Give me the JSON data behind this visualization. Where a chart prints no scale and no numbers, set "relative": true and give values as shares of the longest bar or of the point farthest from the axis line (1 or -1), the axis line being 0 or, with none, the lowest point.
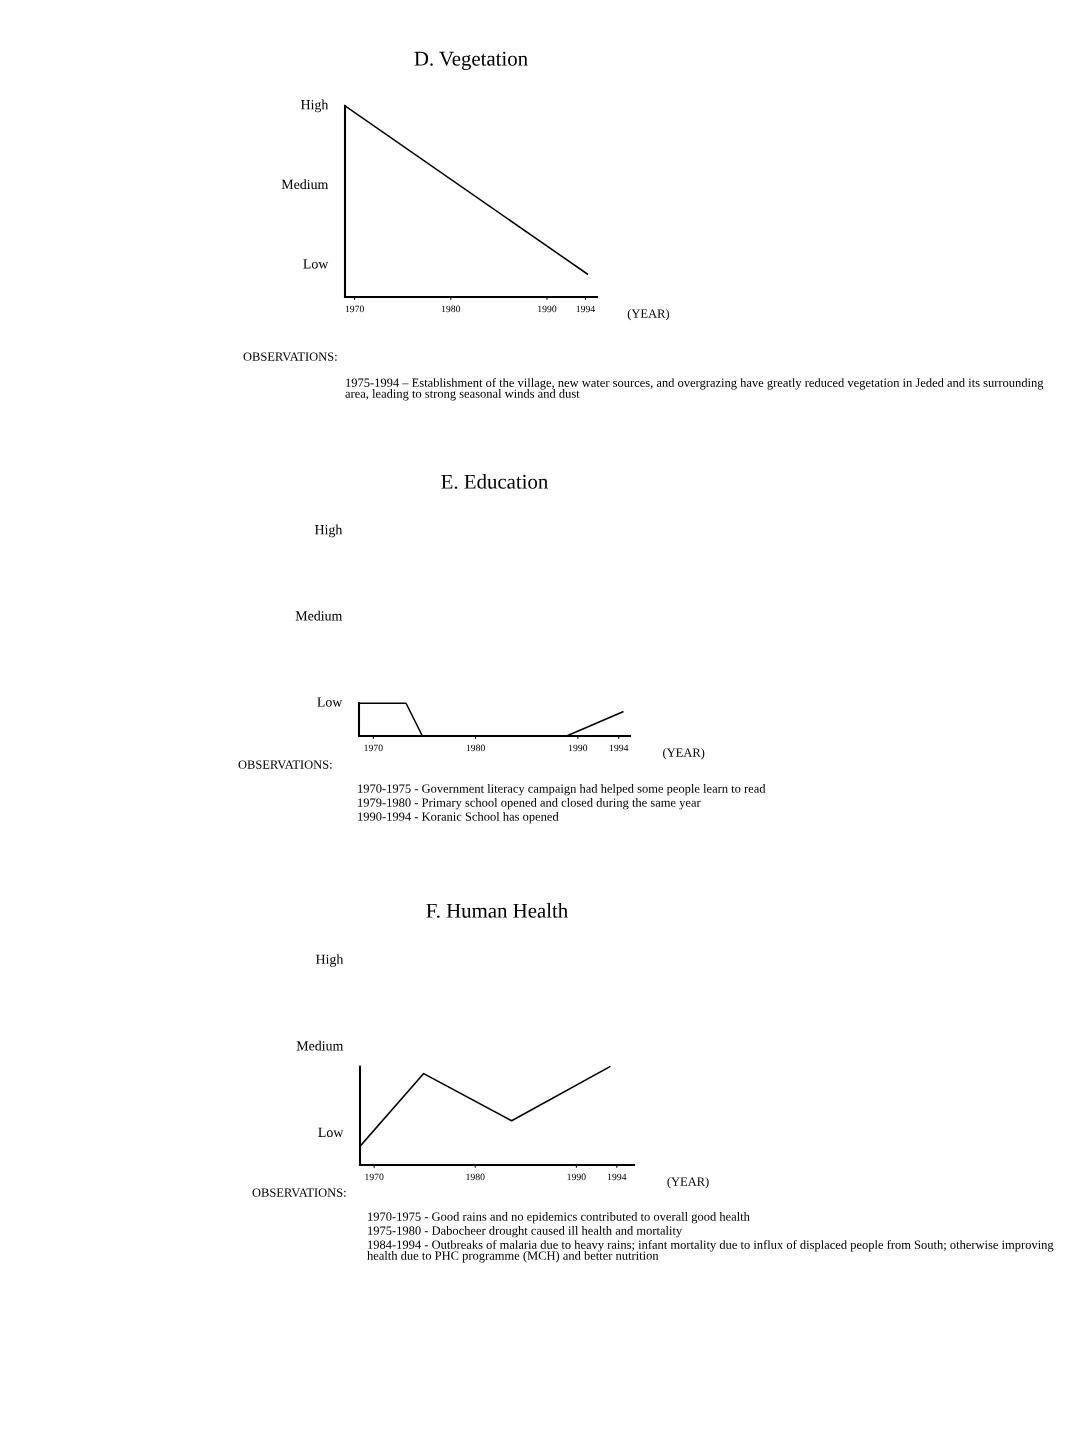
{
  "chart_data": [
    {
      "type": "line",
      "title": "D. Vegetation",
      "xlabel": "(YEAR)",
      "color": "#000000",
      "relative": true,
      "xlim": [
        1969,
        1995.2
      ],
      "xticks": [
        1970,
        1980,
        1990,
        1994
      ],
      "y_categories": [
        "High",
        "Medium",
        "Low"
      ],
      "x": [
        1969,
        1994.2
      ],
      "values": [
        1,
        0.12
      ],
      "annotations": [
        "OBSERVATIONS:",
        "1975-1994 – Establishment of the village, new water sources, and overgrazing have greatly reduced vegetation in Jeded and its surrounding area, leading to strong seasonal winds and dust"
      ]
    },
    {
      "type": "line",
      "title": "E. Education",
      "xlabel": "(YEAR)",
      "color": "#000000",
      "relative": true,
      "xlim": [
        1968.6,
        1995.1
      ],
      "xticks": [
        1970,
        1980,
        1990,
        1994
      ],
      "y_categories": [
        "High",
        "Medium",
        "Low"
      ],
      "x": [
        1968.6,
        1973.2,
        1974.8,
        1988.9,
        1994.4
      ],
      "values": [
        1,
        1,
        0,
        0,
        0.74
      ],
      "annotations": [
        "OBSERVATIONS:",
        "1970-1975 - Government literacy campaign had helped some people learn to read",
        "1979-1980 - Primary school opened and closed during the same year",
        "1990-1994 - Koranic School has opened"
      ]
    },
    {
      "type": "line",
      "title": "F. Human Health",
      "xlabel": "(YEAR)",
      "color": "#000000",
      "relative": true,
      "xlim": [
        1968.6,
        1995.7
      ],
      "xticks": [
        1970,
        1980,
        1990,
        1994
      ],
      "y_categories": [
        "High",
        "Medium",
        "Low"
      ],
      "x": [
        1968.6,
        1974.9,
        1983.6,
        1993.3
      ],
      "values": [
        0.19,
        0.93,
        0.45,
        1
      ],
      "annotations": [
        "OBSERVATIONS:",
        "1970-1975 - Good rains and no epidemics contributed to overall good health",
        "1975-1980 - Dabocheer drought caused ill health and mortality",
        "1984-1994 - Outbreaks of malaria due to heavy rains; infant mortality due to influx of displaced people from South; otherwise improving health due to PHC programme (MCH) and better nutrition"
      ]
    }
  ]
}
